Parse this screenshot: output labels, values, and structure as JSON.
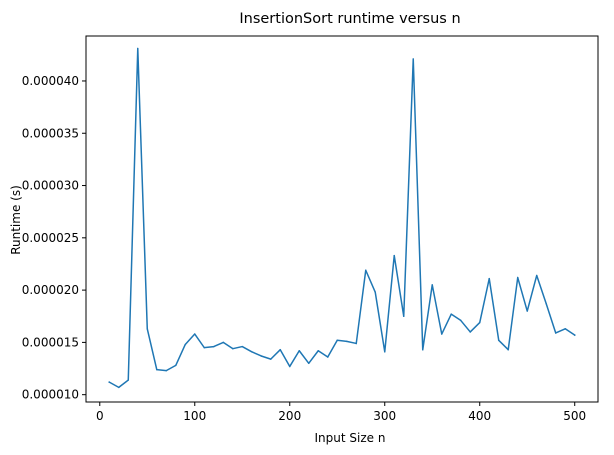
{
  "chart_data": {
    "type": "line",
    "title": "InsertionSort runtime versus n",
    "xlabel": "Input Size n",
    "ylabel": "Runtime (s)",
    "xlim": [
      -14.5,
      524.5
    ],
    "ylim": [
      9.3e-06,
      4.43e-05
    ],
    "xticks": [
      0,
      100,
      200,
      300,
      400,
      500
    ],
    "yticks": [
      1e-05,
      1.5e-05,
      2e-05,
      2.5e-05,
      3e-05,
      3.5e-05,
      4e-05
    ],
    "xtick_labels": [
      "0",
      "100",
      "200",
      "300",
      "400",
      "500"
    ],
    "ytick_labels": [
      "0.000010",
      "0.000015",
      "0.000020",
      "0.000025",
      "0.000030",
      "0.000035",
      "0.000040"
    ],
    "grid": false,
    "legend": "none",
    "colors": {
      "line": "#1f77b4",
      "axes": "#000000",
      "background": "#ffffff"
    },
    "series": [
      {
        "x": [
          10,
          20,
          30,
          40,
          50,
          60,
          70,
          80,
          90,
          100,
          110,
          120,
          130,
          140,
          150,
          160,
          170,
          180,
          190,
          200,
          210,
          220,
          230,
          240,
          250,
          260,
          270,
          280,
          290,
          300,
          310,
          320,
          330,
          340,
          350,
          360,
          370,
          380,
          390,
          400,
          410,
          420,
          430,
          440,
          450,
          460,
          470,
          480,
          490,
          500
        ],
        "values": [
          1.12e-05,
          1.07e-05,
          1.14e-05,
          4.31e-05,
          1.63e-05,
          1.24e-05,
          1.23e-05,
          1.28e-05,
          1.48e-05,
          1.58e-05,
          1.45e-05,
          1.46e-05,
          1.5e-05,
          1.44e-05,
          1.46e-05,
          1.41e-05,
          1.37e-05,
          1.34e-05,
          1.43e-05,
          1.27e-05,
          1.42e-05,
          1.3e-05,
          1.42e-05,
          1.36e-05,
          1.52e-05,
          1.51e-05,
          1.49e-05,
          2.19e-05,
          1.98e-05,
          1.41e-05,
          2.33e-05,
          1.75e-05,
          4.21e-05,
          1.43e-05,
          2.05e-05,
          1.58e-05,
          1.77e-05,
          1.71e-05,
          1.6e-05,
          1.69e-05,
          2.11e-05,
          1.52e-05,
          1.43e-05,
          2.12e-05,
          1.8e-05,
          2.14e-05,
          1.87e-05,
          1.59e-05,
          1.63e-05,
          1.57e-05
        ]
      }
    ]
  }
}
